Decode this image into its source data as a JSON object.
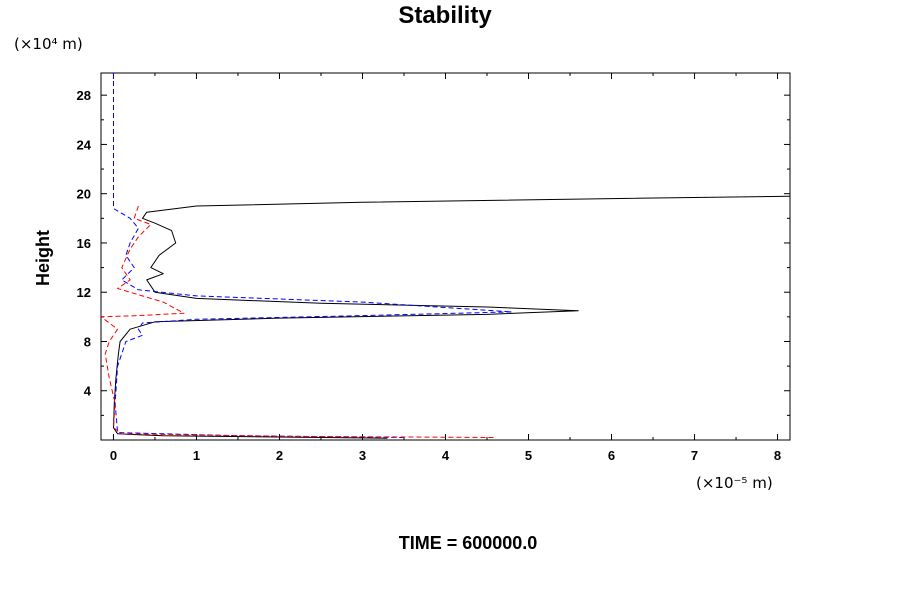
{
  "chart_data": {
    "type": "line",
    "title": "Stability",
    "ylabel": "Height",
    "xlabel": "",
    "x_unit_label": "(×10⁻⁵ m)",
    "y_unit_label": "(×10⁴ m)",
    "footer": "TIME = 600000.0",
    "xlim": [
      -0.15,
      8.15
    ],
    "ylim": [
      0,
      29.8
    ],
    "x_ticks": [
      0,
      1,
      2,
      3,
      4,
      5,
      6,
      7,
      8
    ],
    "y_ticks": [
      4,
      8,
      12,
      16,
      20,
      24,
      28
    ],
    "grid": false,
    "series": [
      {
        "color": "#000000",
        "dash": "solid",
        "points": [
          [
            3.3,
            0.15
          ],
          [
            0.6,
            0.35
          ],
          [
            0.05,
            0.5
          ],
          [
            0.0,
            1
          ],
          [
            0.01,
            3
          ],
          [
            0.03,
            5
          ],
          [
            0.06,
            7
          ],
          [
            0.08,
            8
          ],
          [
            0.2,
            9
          ],
          [
            0.5,
            9.6
          ],
          [
            2,
            9.9
          ],
          [
            4.5,
            10.2
          ],
          [
            5.6,
            10.5
          ],
          [
            4.5,
            10.8
          ],
          [
            2.5,
            11.1
          ],
          [
            1,
            11.5
          ],
          [
            0.5,
            12
          ],
          [
            0.4,
            13
          ],
          [
            0.6,
            13.5
          ],
          [
            0.45,
            14
          ],
          [
            0.55,
            15
          ],
          [
            0.75,
            16
          ],
          [
            0.7,
            17
          ],
          [
            0.5,
            17.6
          ],
          [
            0.35,
            18
          ],
          [
            0.4,
            18.5
          ],
          [
            1,
            19
          ],
          [
            3,
            19.3
          ],
          [
            6,
            19.6
          ],
          [
            8.15,
            19.8
          ]
        ]
      },
      {
        "color": "#0000ff",
        "dash": "dashed",
        "points": [
          [
            0.0,
            29.8
          ],
          [
            0.0,
            24
          ],
          [
            0.0,
            18.8
          ],
          [
            0.2,
            18
          ],
          [
            0.3,
            17.2
          ],
          [
            0.2,
            16
          ],
          [
            0.15,
            15
          ],
          [
            0.25,
            14
          ],
          [
            0.1,
            13
          ],
          [
            0.3,
            12.2
          ],
          [
            1,
            11.7
          ],
          [
            3,
            11.2
          ],
          [
            4.8,
            10.4
          ],
          [
            3,
            10.1
          ],
          [
            1,
            9.8
          ],
          [
            0.35,
            9.5
          ],
          [
            0.3,
            9
          ],
          [
            0.35,
            8.5
          ],
          [
            0.15,
            8
          ],
          [
            0.05,
            6
          ],
          [
            0.02,
            3
          ],
          [
            0.05,
            0.6
          ],
          [
            1.5,
            0.35
          ],
          [
            3.5,
            0.2
          ]
        ]
      },
      {
        "color": "#ff0000",
        "dash": "dashed",
        "points": [
          [
            0.3,
            19
          ],
          [
            0.25,
            18
          ],
          [
            0.45,
            17.5
          ],
          [
            0.3,
            16.5
          ],
          [
            0.2,
            15.5
          ],
          [
            0.1,
            14
          ],
          [
            0.2,
            13
          ],
          [
            0.05,
            12.3
          ],
          [
            0.3,
            11.8
          ],
          [
            0.6,
            11.2
          ],
          [
            0.85,
            10.3
          ],
          [
            0.3,
            10.1
          ],
          [
            -0.15,
            10
          ],
          [
            0.05,
            9
          ],
          [
            -0.05,
            8
          ],
          [
            -0.1,
            7
          ],
          [
            -0.05,
            5
          ],
          [
            0.02,
            3
          ],
          [
            0.0,
            1
          ],
          [
            0.1,
            0.5
          ],
          [
            2,
            0.3
          ],
          [
            4.6,
            0.2
          ]
        ]
      }
    ]
  }
}
